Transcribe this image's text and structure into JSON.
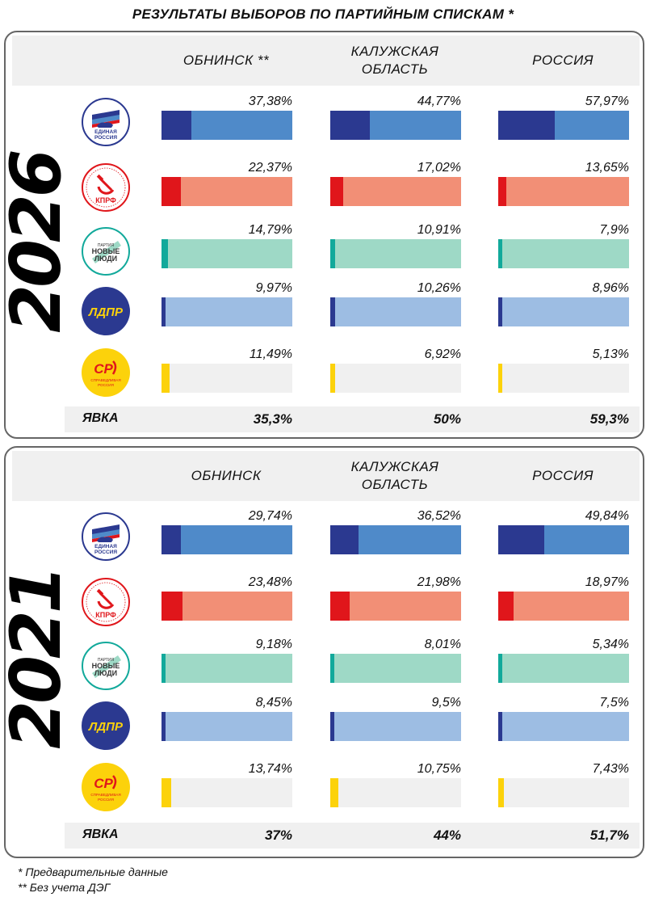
{
  "title": "РЕЗУЛЬТАТЫ ВЫБОРОВ ПО ПАРТИЙНЫМ СПИСКАМ *",
  "colors": {
    "united_russia_dark": "#2b3990",
    "united_russia_light": "#4f8ac9",
    "kprf_dark": "#e0161b",
    "kprf_light": "#f28f76",
    "new_people_dark": "#12a99b",
    "new_people_light": "#9ed9c6",
    "ldpr_dark": "#2b3990",
    "ldpr_light": "#9dbde3",
    "sr_dark": "#fcd20b",
    "sr_light": "#f0f0f0"
  },
  "parties": [
    {
      "key": "united_russia",
      "logo_lines": [
        "ЕДИНАЯ",
        "РОССИЯ"
      ],
      "icon": "bear-flag-icon"
    },
    {
      "key": "kprf",
      "logo_lines": [
        "КПРФ"
      ],
      "icon": "hammer-sickle-icon"
    },
    {
      "key": "new_people",
      "logo_lines": [
        "ПАРТИЯ",
        "НОВЫЕ",
        "ЛЮДИ"
      ],
      "icon": "new-people-icon"
    },
    {
      "key": "ldpr",
      "logo_lines": [
        "ЛДПР"
      ],
      "icon": "ldpr-icon"
    },
    {
      "key": "sr",
      "logo_lines": [
        "СР",
        "СПРАВЕДЛИВАЯ",
        "РОССИЯ"
      ],
      "icon": "sr-icon"
    }
  ],
  "chart_data": [
    {
      "type": "bar",
      "year": "2026",
      "columns": [
        "ОБНИНСК **",
        "КАЛУЖСКАЯ ОБЛАСТЬ",
        "РОССИЯ"
      ],
      "column_lines": [
        [
          "ОБНИНСК **"
        ],
        [
          "КАЛУЖСКАЯ",
          "ОБЛАСТЬ"
        ],
        [
          "РОССИЯ"
        ]
      ],
      "labels": [
        [
          "37,38%",
          "44,77%",
          "57,97%"
        ],
        [
          "22,37%",
          "17,02%",
          "13,65%"
        ],
        [
          "14,79%",
          "10,91%",
          "7,9%"
        ],
        [
          "9,97%",
          "10,26%",
          "8,96%"
        ],
        [
          "11,49%",
          "6,92%",
          "5,13%"
        ]
      ],
      "values": [
        [
          37.38,
          44.77,
          57.97
        ],
        [
          22.37,
          17.02,
          13.65
        ],
        [
          14.79,
          10.91,
          7.9
        ],
        [
          9.97,
          10.26,
          8.96
        ],
        [
          11.49,
          6.92,
          5.13
        ]
      ],
      "turnout_label": "ЯВКА",
      "turnout": [
        "35,3%",
        "50%",
        "59,3%"
      ]
    },
    {
      "type": "bar",
      "year": "2021",
      "columns": [
        "ОБНИНСК",
        "КАЛУЖСКАЯ ОБЛАСТЬ",
        "РОССИЯ"
      ],
      "column_lines": [
        [
          "ОБНИНСК"
        ],
        [
          "КАЛУЖСКАЯ",
          "ОБЛАСТЬ"
        ],
        [
          "РОССИЯ"
        ]
      ],
      "labels": [
        [
          "29,74%",
          "36,52%",
          "49,84%"
        ],
        [
          "23,48%",
          "21,98%",
          "18,97%"
        ],
        [
          "9,18%",
          "8,01%",
          "5,34%"
        ],
        [
          "8,45%",
          "9,5%",
          "7,5%"
        ],
        [
          "13,74%",
          "10,75%",
          "7,43%"
        ]
      ],
      "values": [
        [
          29.74,
          36.52,
          49.84
        ],
        [
          23.48,
          21.98,
          18.97
        ],
        [
          9.18,
          8.01,
          5.34
        ],
        [
          8.45,
          9.5,
          7.5
        ],
        [
          13.74,
          10.75,
          7.43
        ]
      ],
      "turnout_label": "ЯВКА",
      "turnout": [
        "37%",
        "44%",
        "51,7%"
      ]
    }
  ],
  "notes": [
    "* Предварительные данные",
    "** Без учета ДЭГ"
  ]
}
